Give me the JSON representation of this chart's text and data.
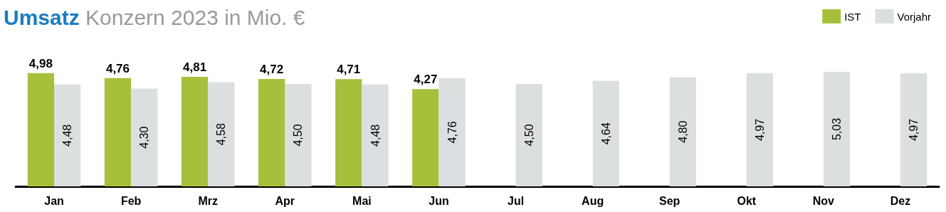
{
  "chart_data": {
    "type": "bar",
    "title": "Umsatz Konzern 2023 in Mio. €",
    "categories": [
      "Jan",
      "Feb",
      "Mrz",
      "Apr",
      "Mai",
      "Jun",
      "Jul",
      "Aug",
      "Sep",
      "Okt",
      "Nov",
      "Dez"
    ],
    "series": [
      {
        "name": "IST",
        "color": "#a5c13c",
        "values": [
          4.98,
          4.76,
          4.81,
          4.72,
          4.71,
          4.27,
          null,
          null,
          null,
          null,
          null,
          null
        ],
        "value_labels": [
          "4,98",
          "4,76",
          "4,81",
          "4,72",
          "4,71",
          "4,27",
          null,
          null,
          null,
          null,
          null,
          null
        ]
      },
      {
        "name": "Vorjahr",
        "color": "#dcdfe0",
        "values": [
          4.48,
          4.3,
          4.58,
          4.5,
          4.48,
          4.76,
          4.5,
          4.64,
          4.8,
          4.97,
          5.03,
          4.97
        ],
        "value_labels": [
          "4,48",
          "4,30",
          "4,58",
          "4,50",
          "4,48",
          "4,76",
          "4,50",
          "4,64",
          "4,80",
          "4,97",
          "5,03",
          "4,97"
        ]
      }
    ],
    "legend": "top right"
  }
}
